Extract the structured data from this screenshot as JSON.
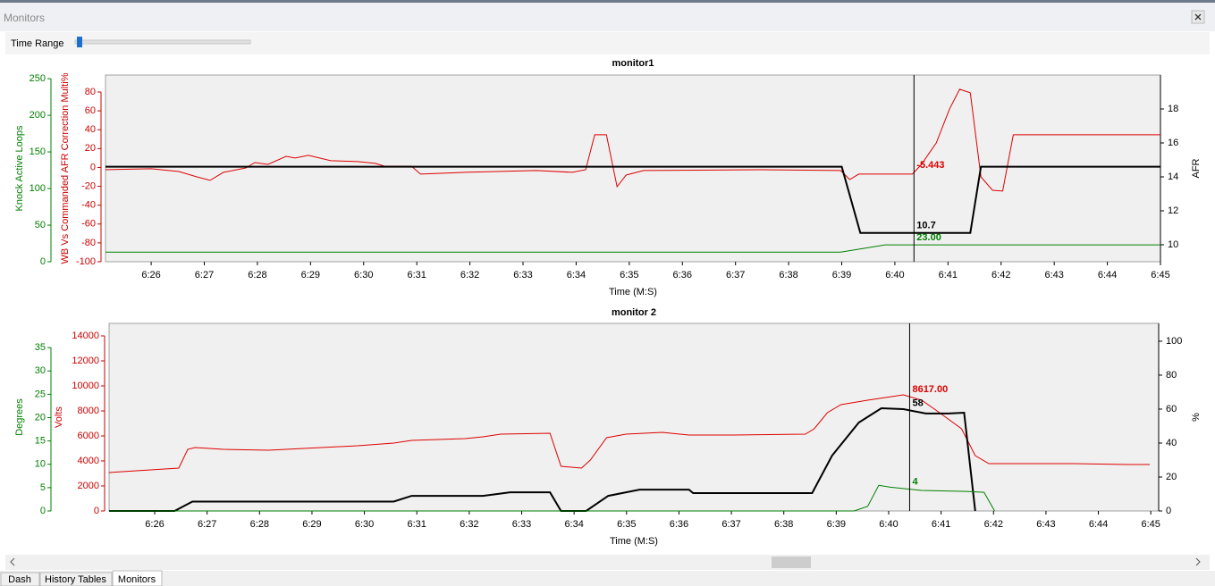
{
  "window": {
    "title": "Monitors"
  },
  "controls": {
    "time_range_label": "Time Range"
  },
  "tabs": [
    "Dash",
    "History Tables",
    "Monitors"
  ],
  "chart_data": [
    {
      "type": "line",
      "title": "monitor1",
      "xlabel": "Time (M:S)",
      "xlim": [
        385.14,
        405.0
      ],
      "xticks": [
        {
          "value": 386,
          "label": "6:26"
        },
        {
          "value": 387,
          "label": "6:27"
        },
        {
          "value": 388,
          "label": "6:28"
        },
        {
          "value": 389,
          "label": "6:29"
        },
        {
          "value": 390,
          "label": "6:30"
        },
        {
          "value": 391,
          "label": "6:31"
        },
        {
          "value": 392,
          "label": "6:32"
        },
        {
          "value": 393,
          "label": "6:33"
        },
        {
          "value": 394,
          "label": "6:34"
        },
        {
          "value": 395,
          "label": "6:35"
        },
        {
          "value": 396,
          "label": "6:36"
        },
        {
          "value": 397,
          "label": "6:37"
        },
        {
          "value": 398,
          "label": "6:38"
        },
        {
          "value": 399,
          "label": "6:39"
        },
        {
          "value": 400,
          "label": "6:40"
        },
        {
          "value": 401,
          "label": "6:41"
        },
        {
          "value": 402,
          "label": "6:42"
        },
        {
          "value": 403,
          "label": "6:43"
        },
        {
          "value": 404,
          "label": "6:44"
        },
        {
          "value": 405,
          "label": "6:45"
        }
      ],
      "axes": [
        {
          "label": "Knock Active Loops",
          "color": "#008000",
          "lim": [
            0,
            255
          ],
          "ticks": [
            0,
            50,
            100,
            150,
            200,
            250
          ]
        },
        {
          "label": "WB Vs Commanded AFR Correction Multi%",
          "color": "#cc0000",
          "lim": [
            -100,
            98
          ],
          "ticks": [
            -100,
            -80,
            -60,
            -40,
            -20,
            0,
            20,
            40,
            60,
            80
          ]
        },
        {
          "label": "AFR",
          "color": "#000000",
          "lim": [
            9,
            20
          ],
          "ticks": [
            10,
            12,
            14,
            16,
            18
          ]
        }
      ],
      "cursor": 400.36,
      "series": [
        {
          "color": "#dd0000",
          "axis": 1,
          "width": 1,
          "cursor_label": "-5.443",
          "x": [
            385.14,
            386.0,
            386.52,
            386.86,
            387.11,
            387.36,
            387.78,
            387.95,
            388.2,
            388.54,
            388.71,
            388.96,
            389.38,
            389.89,
            390.22,
            390.39,
            390.9,
            391.07,
            391.91,
            393.25,
            393.93,
            394.18,
            394.35,
            394.57,
            394.77,
            394.94,
            395.27,
            397.46,
            398.98,
            399.15,
            399.32,
            400.33,
            400.49,
            400.78,
            401.03,
            401.22,
            401.42,
            401.62,
            401.84,
            402.03,
            402.23,
            403.36,
            405.0
          ],
          "values": [
            -2.4,
            -1.4,
            -4.3,
            -10,
            -13.7,
            -5.2,
            -0.5,
            5.2,
            3.3,
            11.8,
            10,
            12.8,
            7.1,
            6.2,
            4.3,
            1.4,
            1.4,
            -7.1,
            -5.2,
            -3.3,
            -5.2,
            -2.4,
            34.6,
            34.6,
            -20.4,
            -8.1,
            -3.3,
            -2.4,
            -3.3,
            -12.8,
            -7.1,
            -7.1,
            2.4,
            26.1,
            62.1,
            82.9,
            79.1,
            -10,
            -24.2,
            -25.1,
            34.6,
            34.6,
            34.6
          ]
        },
        {
          "color": "#000000",
          "axis": 2,
          "width": 2,
          "cursor_label": "10.7",
          "x": [
            385.14,
            399.0,
            399.35,
            401.42,
            401.62,
            405.0
          ],
          "values": [
            14.6,
            14.6,
            10.7,
            10.7,
            14.6,
            14.6
          ]
        },
        {
          "color": "#008000",
          "axis": 0,
          "width": 1,
          "cursor_label": "23.00",
          "x": [
            385.14,
            398.98,
            399.82,
            405.0
          ],
          "values": [
            13,
            13,
            23,
            23
          ]
        }
      ]
    },
    {
      "type": "line",
      "title": "monitor 2",
      "xlabel": "Time (M:S)",
      "xlim": [
        385.13,
        405.15
      ],
      "xticks": [
        {
          "value": 386,
          "label": "6:26"
        },
        {
          "value": 387,
          "label": "6:27"
        },
        {
          "value": 388,
          "label": "6:28"
        },
        {
          "value": 389,
          "label": "6:29"
        },
        {
          "value": 390,
          "label": "6:30"
        },
        {
          "value": 391,
          "label": "6:31"
        },
        {
          "value": 392,
          "label": "6:32"
        },
        {
          "value": 393,
          "label": "6:33"
        },
        {
          "value": 394,
          "label": "6:34"
        },
        {
          "value": 395,
          "label": "6:35"
        },
        {
          "value": 396,
          "label": "6:36"
        },
        {
          "value": 397,
          "label": "6:37"
        },
        {
          "value": 398,
          "label": "6:38"
        },
        {
          "value": 399,
          "label": "6:39"
        },
        {
          "value": 400,
          "label": "6:40"
        },
        {
          "value": 401,
          "label": "6:41"
        },
        {
          "value": 402,
          "label": "6:42"
        },
        {
          "value": 403,
          "label": "6:43"
        },
        {
          "value": 404,
          "label": "6:44"
        },
        {
          "value": 405,
          "label": "6:45"
        }
      ],
      "axes": [
        {
          "label": "Degrees",
          "color": "#008000",
          "lim": [
            0,
            40.2
          ],
          "ticks": [
            0,
            5,
            10,
            15,
            20,
            25,
            30,
            35
          ]
        },
        {
          "label": "Volts",
          "color": "#cc0000",
          "lim": [
            0,
            15000
          ],
          "ticks": [
            0,
            2000,
            4000,
            6000,
            8000,
            10000,
            12000,
            14000
          ]
        },
        {
          "label": "%",
          "color": "#000000",
          "lim": [
            0,
            110.5
          ],
          "ticks": [
            0,
            20,
            40,
            60,
            80,
            100
          ]
        }
      ],
      "cursor": 400.4,
      "series": [
        {
          "color": "#dd0000",
          "axis": 1,
          "width": 1,
          "cursor_label": "8617.00",
          "x": [
            385.13,
            386.46,
            386.63,
            386.77,
            387.31,
            388.17,
            389.87,
            390.56,
            390.9,
            391.92,
            392.26,
            392.6,
            393.54,
            393.75,
            394.14,
            394.31,
            394.62,
            394.99,
            395.68,
            396.19,
            397.04,
            398.41,
            398.58,
            398.83,
            399.09,
            399.6,
            399.94,
            400.28,
            400.63,
            400.97,
            401.39,
            401.65,
            401.91,
            403.53,
            404.55,
            404.98
          ],
          "values": [
            3071,
            3429,
            4929,
            5071,
            4929,
            4857,
            5214,
            5429,
            5643,
            5786,
            5929,
            6143,
            6214,
            3571,
            3429,
            4071,
            5857,
            6143,
            6286,
            6071,
            6071,
            6143,
            6571,
            7857,
            8500,
            8857,
            9071,
            9286,
            8857,
            7857,
            6571,
            4429,
            3786,
            3786,
            3714,
            3714
          ]
        },
        {
          "color": "#000000",
          "axis": 2,
          "width": 2,
          "cursor_label": "58",
          "x": [
            385.13,
            386.38,
            386.72,
            390.56,
            390.9,
            392.26,
            392.78,
            393.54,
            393.75,
            394.23,
            394.65,
            394.99,
            395.25,
            396.19,
            396.27,
            398.54,
            398.92,
            399.43,
            399.86,
            400.28,
            400.71,
            401.14,
            401.44,
            401.65
          ],
          "values": [
            0,
            0,
            5.5,
            5.5,
            8.9,
            8.9,
            11,
            11,
            0,
            0,
            8.9,
            11,
            12.6,
            12.6,
            10.5,
            10.5,
            32.6,
            52.1,
            60.5,
            60,
            57.4,
            57.4,
            57.9,
            0
          ]
        },
        {
          "color": "#008000",
          "axis": 0,
          "width": 1,
          "cursor_label": "4",
          "x": [
            385.13,
            399.34,
            399.6,
            399.81,
            400.03,
            400.28,
            400.63,
            401.48,
            401.82,
            402.02
          ],
          "values": [
            0,
            0,
            1,
            5.5,
            5.1,
            4.8,
            4.4,
            4.2,
            4,
            0
          ]
        }
      ]
    }
  ]
}
